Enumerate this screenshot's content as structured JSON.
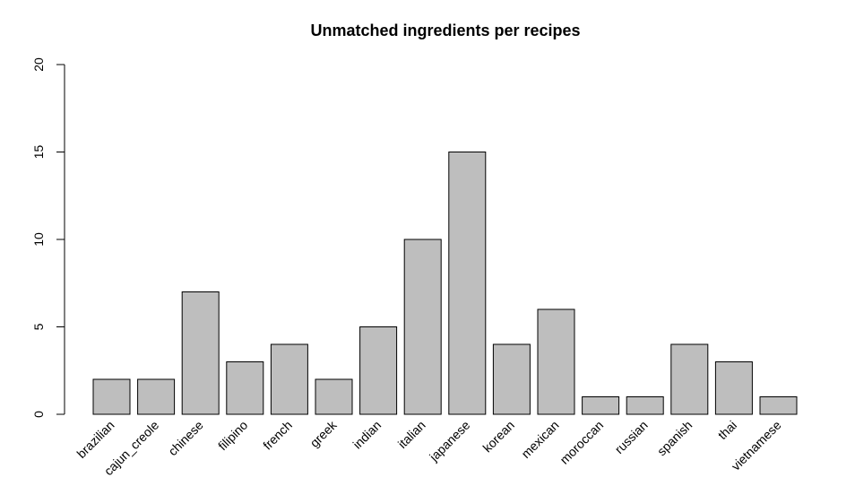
{
  "chart_data": {
    "type": "bar",
    "title": "Unmatched ingredients per recipes",
    "xlabel": "",
    "ylabel": "",
    "categories": [
      "brazilian",
      "cajun_creole",
      "chinese",
      "filipino",
      "french",
      "greek",
      "indian",
      "italian",
      "japanese",
      "korean",
      "mexican",
      "moroccan",
      "russian",
      "spanish",
      "thai",
      "vietnamese"
    ],
    "values": [
      2,
      2,
      7,
      3,
      4,
      2,
      5,
      10,
      15,
      4,
      6,
      1,
      1,
      4,
      3,
      1
    ],
    "ylim": [
      0,
      20
    ],
    "yticks": [
      "0",
      "5",
      "10",
      "15",
      "20"
    ],
    "bar_color": "#bebebe",
    "grid": false,
    "legend": "none"
  }
}
